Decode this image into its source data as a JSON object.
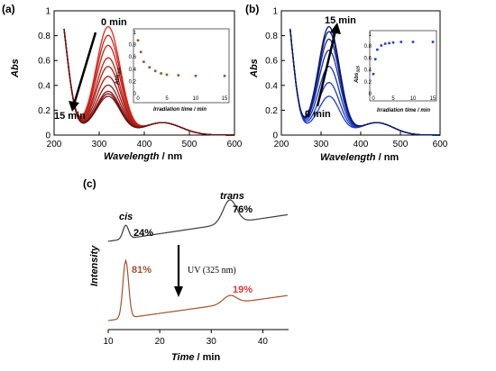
{
  "chart_data": [
    {
      "panel": "(a)",
      "type": "line",
      "xlabel_main": "Wavelength",
      "xlabel_unit": " / nm",
      "ylabel": "Abs",
      "xlim": [
        200,
        600
      ],
      "ylim": [
        0,
        1
      ],
      "xticks": [
        "200",
        "300",
        "400",
        "500",
        "600"
      ],
      "yticks": [
        "0",
        "0.2",
        "0.4",
        "0.6",
        "0.8",
        "1"
      ],
      "annotations": [
        "0 min",
        "15 min"
      ],
      "series_count": 10,
      "peak_values_325nm": [
        0.87,
        0.8,
        0.72,
        0.62,
        0.55,
        0.47,
        0.4,
        0.35,
        0.33,
        0.31
      ],
      "inset": {
        "type": "scatter",
        "xlabel": "Irradiation time / min",
        "ylabel": "Abs",
        "ylabel_sub": "325",
        "xlim": [
          0,
          15
        ],
        "ylim": [
          0,
          1
        ],
        "xticks": [
          "0",
          "5",
          "10",
          "15"
        ],
        "yticks": [
          "0",
          "0.2",
          "0.4",
          "0.6",
          "0.8",
          "1"
        ],
        "x": [
          0,
          0.5,
          1,
          2,
          3,
          4,
          5,
          7,
          10,
          15
        ],
        "y": [
          0.87,
          0.68,
          0.52,
          0.43,
          0.37,
          0.33,
          0.31,
          0.3,
          0.29,
          0.29
        ]
      }
    },
    {
      "panel": "(b)",
      "type": "line",
      "xlabel_main": "Wavelength",
      "xlabel_unit": " / nm",
      "ylabel": "Abs",
      "xlim": [
        200,
        600
      ],
      "ylim": [
        0,
        1
      ],
      "xticks": [
        "200",
        "300",
        "400",
        "500",
        "600"
      ],
      "yticks": [
        "0",
        "0.2",
        "0.4",
        "0.6",
        "0.8",
        "1"
      ],
      "annotations": [
        "15 min",
        "0 min"
      ],
      "series_count": 7,
      "peak_values_325nm": [
        0.31,
        0.42,
        0.55,
        0.68,
        0.77,
        0.83,
        0.87
      ],
      "inset": {
        "type": "scatter",
        "xlabel": "Irradiation time / min",
        "ylabel": "Abs",
        "ylabel_sub": "325",
        "xlim": [
          0,
          15
        ],
        "ylim": [
          0,
          1
        ],
        "xticks": [
          "0",
          "5",
          "10",
          "15"
        ],
        "yticks": [
          "0",
          "0.2",
          "0.4",
          "0.6",
          "0.8",
          "1"
        ],
        "x": [
          0,
          0.5,
          1,
          2,
          3,
          4,
          5,
          7,
          10,
          15
        ],
        "y": [
          0.33,
          0.58,
          0.74,
          0.81,
          0.84,
          0.85,
          0.86,
          0.87,
          0.87,
          0.87
        ]
      }
    },
    {
      "panel": "(c)",
      "type": "line",
      "xlabel_main": "Time",
      "xlabel_unit": " / min",
      "ylabel": "Intensity",
      "xlim": [
        10,
        45
      ],
      "xticks": [
        "10",
        "20",
        "30",
        "40"
      ],
      "peak_labels": {
        "cis": "cis",
        "trans": "trans"
      },
      "top_trace": {
        "cis_pct": "24%",
        "trans_pct": "76%",
        "color": "#3a3a3a"
      },
      "bottom_trace": {
        "cis_pct": "81%",
        "trans_pct": "19%",
        "color": "#a0522d"
      },
      "arrow_label": "UV (325 nm)"
    }
  ],
  "colors": {
    "red_series": "#e0251b",
    "dark_red_series": "#6a1212",
    "blue_series": "#1f3fd6",
    "dark_blue_series": "#0a1a6e",
    "inset_a": "#8b5a2b",
    "inset_b": "#1f3fd6",
    "pct_81": "#a0522d",
    "pct_19": "#d63a3a"
  }
}
